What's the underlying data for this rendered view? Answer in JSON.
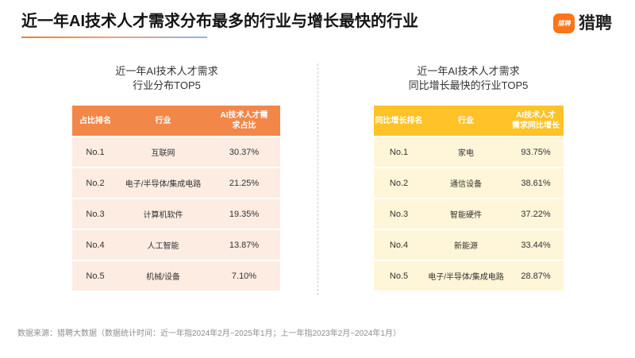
{
  "title": "近一年AI技术人才需求分布最多的行业与增长最快的行业",
  "logo": {
    "icon_text": "猎聘",
    "brand": "猎聘"
  },
  "colors": {
    "left_header": "#F2874A",
    "left_row": "#FCECE2",
    "right_header": "#FFC328",
    "right_row": "#FFF5D8",
    "brand": "#FF7418",
    "accent_orange": "#F37B2B",
    "accent_blue": "#8FB2EE"
  },
  "chart_data": [
    {
      "type": "table",
      "title": "近一年AI技术人才需求\n行业分布TOP5",
      "columns": [
        "占比排名",
        "行业",
        "AI技术人才需\n求占比"
      ],
      "rows": [
        [
          "No.1",
          "互联网",
          "30.37%"
        ],
        [
          "No.2",
          "电子/半导体/集成电路",
          "21.25%"
        ],
        [
          "No.3",
          "计算机软件",
          "19.35%"
        ],
        [
          "No.4",
          "人工智能",
          "13.87%"
        ],
        [
          "No.5",
          "机械/设备",
          "7.10%"
        ]
      ]
    },
    {
      "type": "table",
      "title": "近一年AI技术人才需求\n同比增长最快的行业TOP5",
      "columns": [
        "同比增长排名",
        "行业",
        "AI技术人才\n需求同比增长"
      ],
      "rows": [
        [
          "No.1",
          "家电",
          "93.75%"
        ],
        [
          "No.2",
          "通信设备",
          "38.61%"
        ],
        [
          "No.3",
          "智能硬件",
          "37.22%"
        ],
        [
          "No.4",
          "新能源",
          "33.44%"
        ],
        [
          "No.5",
          "电子/半导体/集成电路",
          "28.87%"
        ]
      ]
    }
  ],
  "footer": {
    "source_note": "数据来源：猎聘大数据（数据统计时间：近一年指2024年2月~2025年1月；上一年指2023年2月~2024年1月）"
  }
}
